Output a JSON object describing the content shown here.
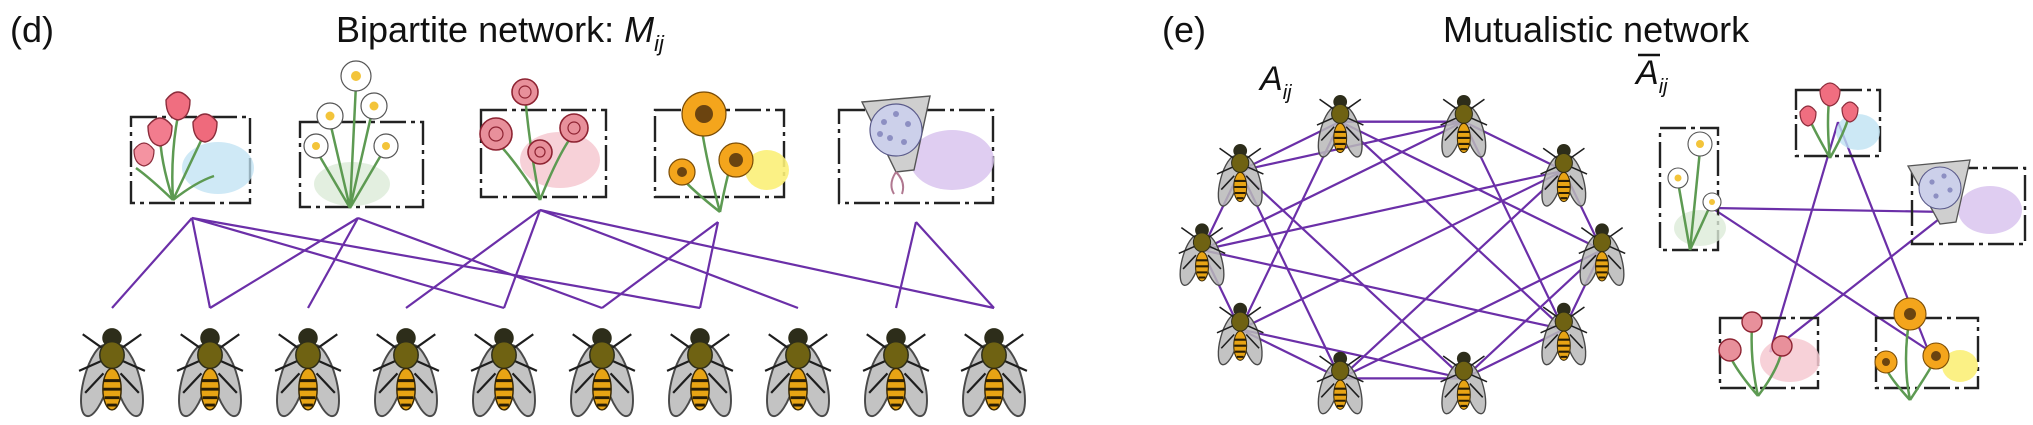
{
  "panel_d": {
    "label": "(d)",
    "title_main": "Bipartite network: ",
    "title_sym": "M",
    "title_sub": "ij",
    "plants": [
      {
        "kind": "tulips",
        "color": "#f06e80",
        "wash": "#bfe2f3"
      },
      {
        "kind": "daisies",
        "color": "#ffffff",
        "wash": "#dcebd8"
      },
      {
        "kind": "roses",
        "color": "#d9475a",
        "wash": "#f6c9d1"
      },
      {
        "kind": "sunflowers",
        "color": "#f4a51c",
        "wash": "#fbef78"
      },
      {
        "kind": "hydrangea",
        "color": "#ccd0ea",
        "wash": "#d9c4ee"
      }
    ],
    "pollinator_count": 10,
    "links": [
      [
        0,
        0
      ],
      [
        0,
        1
      ],
      [
        0,
        4
      ],
      [
        0,
        6
      ],
      [
        1,
        1
      ],
      [
        1,
        2
      ],
      [
        1,
        5
      ],
      [
        2,
        3
      ],
      [
        2,
        4
      ],
      [
        2,
        7
      ],
      [
        2,
        9
      ],
      [
        3,
        5
      ],
      [
        3,
        6
      ],
      [
        4,
        8
      ],
      [
        4,
        9
      ]
    ]
  },
  "panel_e": {
    "label": "(e)",
    "title": "Mutualistic network",
    "left_sym": "A",
    "left_sub": "ij",
    "right_sym": "A",
    "right_sub": "ij",
    "pollinator_count": 10,
    "pollinator_links": [
      [
        0,
        1
      ],
      [
        0,
        3
      ],
      [
        0,
        4
      ],
      [
        0,
        7
      ],
      [
        1,
        4
      ],
      [
        1,
        9
      ],
      [
        2,
        6
      ],
      [
        2,
        8
      ],
      [
        3,
        5
      ],
      [
        3,
        6
      ],
      [
        4,
        8
      ],
      [
        5,
        7
      ],
      [
        5,
        9
      ],
      [
        6,
        9
      ],
      [
        7,
        2
      ],
      [
        8,
        1
      ]
    ],
    "plant_links": [
      [
        0,
        2
      ],
      [
        0,
        4
      ],
      [
        1,
        3
      ],
      [
        1,
        4
      ],
      [
        2,
        3
      ]
    ]
  },
  "colors": {
    "link": "#6b2fa8"
  }
}
